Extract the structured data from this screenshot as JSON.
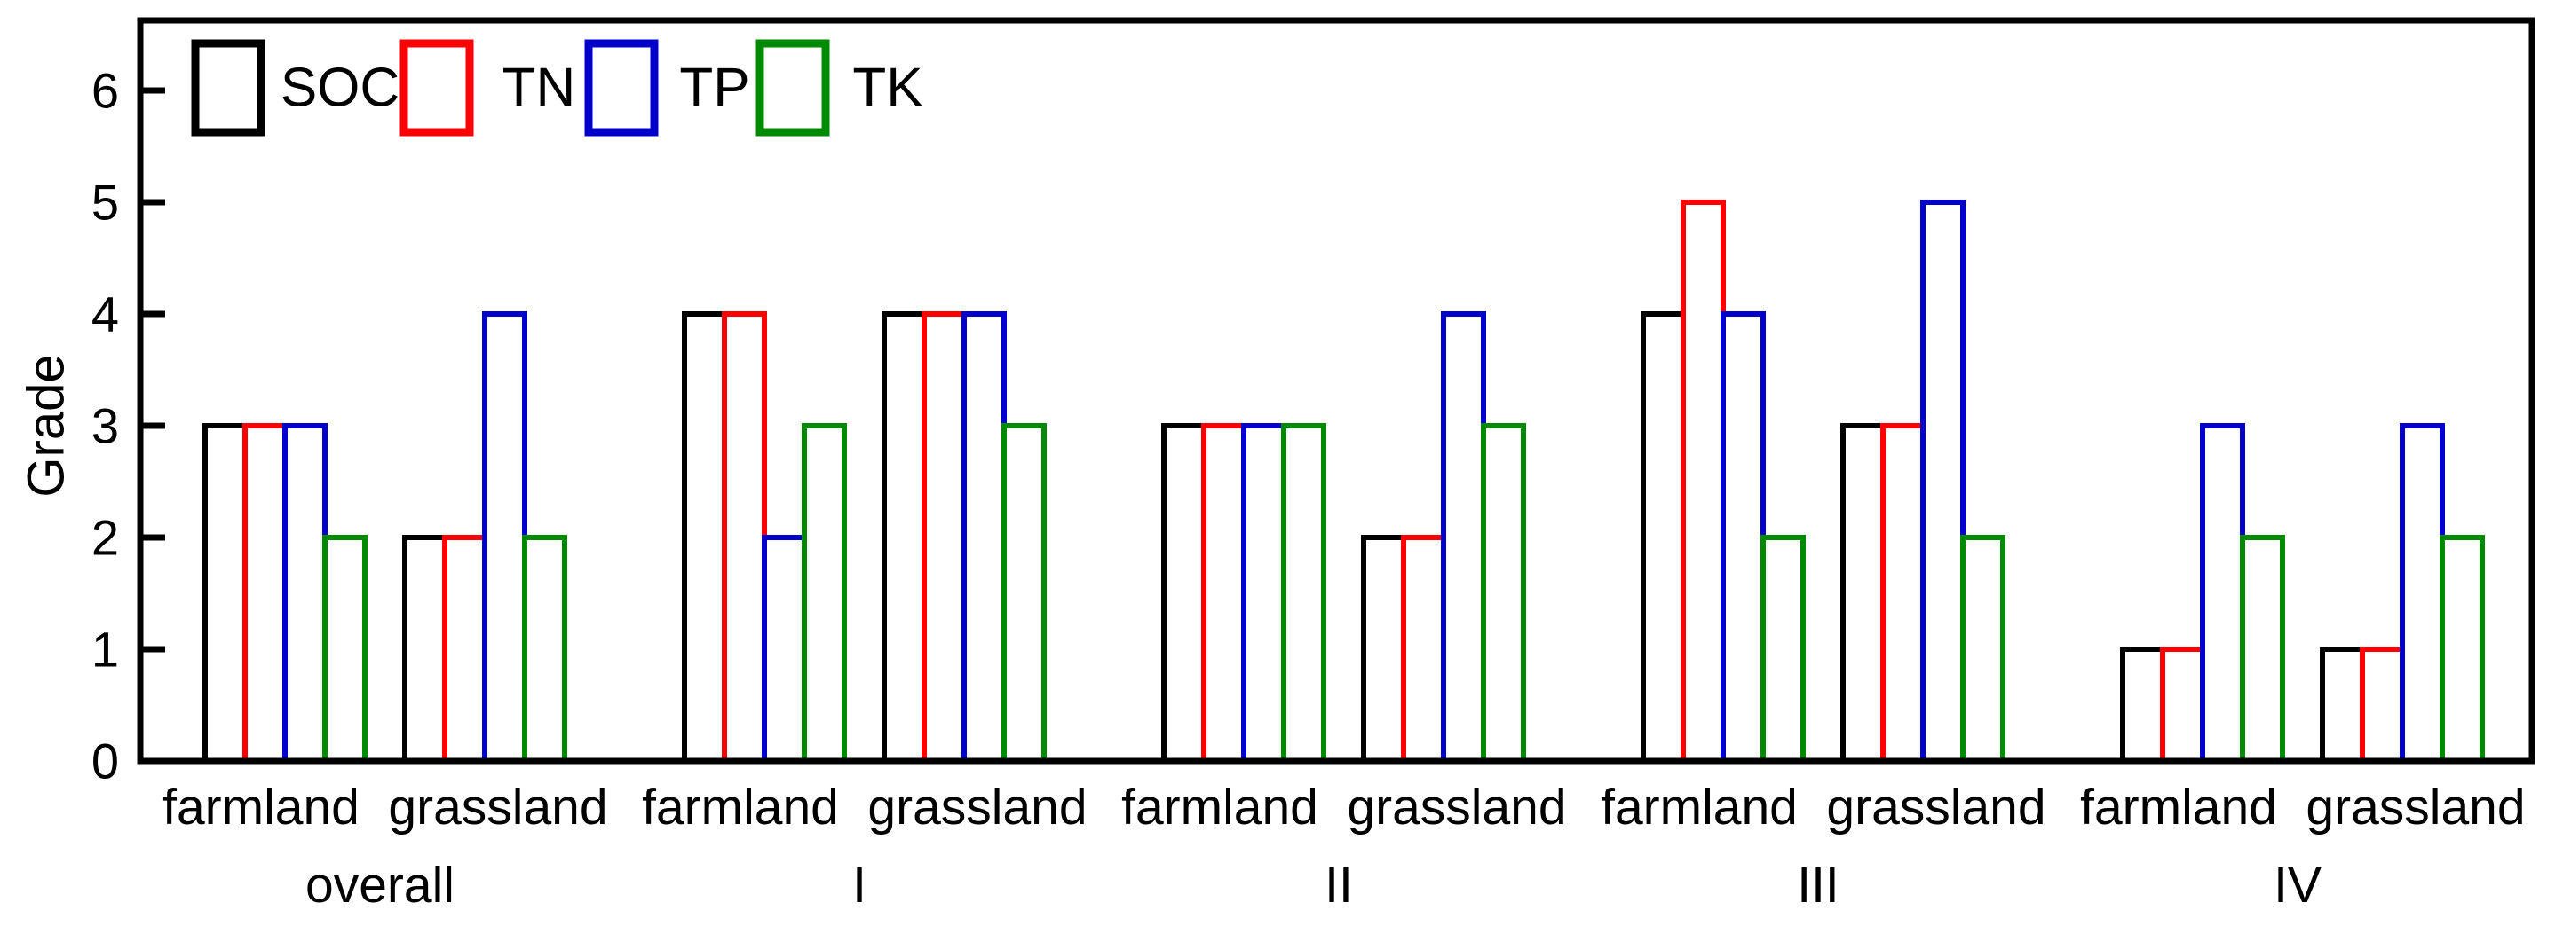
{
  "chart_data": {
    "type": "bar",
    "title": "",
    "ylabel": "Grade",
    "xlabel": "",
    "ylim": [
      0,
      6.4
    ],
    "yticks": [
      0,
      1,
      2,
      3,
      4,
      5,
      6
    ],
    "grid": false,
    "bar_style": "hollow-outline",
    "legend_position": "top-left-inside",
    "groups": [
      "overall",
      "I",
      "II",
      "III",
      "IV"
    ],
    "subgroups": [
      "farmland",
      "grassland"
    ],
    "series": [
      {
        "name": "SOC",
        "color": "#000000",
        "values": [
          [
            3,
            2
          ],
          [
            4,
            4
          ],
          [
            3,
            2
          ],
          [
            4,
            3
          ],
          [
            1,
            1
          ]
        ]
      },
      {
        "name": "TN",
        "color": "#FF0000",
        "values": [
          [
            3,
            2
          ],
          [
            4,
            4
          ],
          [
            3,
            2
          ],
          [
            5,
            3
          ],
          [
            1,
            1
          ]
        ]
      },
      {
        "name": "TP",
        "color": "#0000CD",
        "values": [
          [
            3,
            4
          ],
          [
            2,
            4
          ],
          [
            3,
            4
          ],
          [
            4,
            5
          ],
          [
            3,
            3
          ]
        ]
      },
      {
        "name": "TK",
        "color": "#008A00",
        "values": [
          [
            2,
            2
          ],
          [
            3,
            3
          ],
          [
            3,
            3
          ],
          [
            2,
            2
          ],
          [
            2,
            2
          ]
        ]
      }
    ]
  }
}
